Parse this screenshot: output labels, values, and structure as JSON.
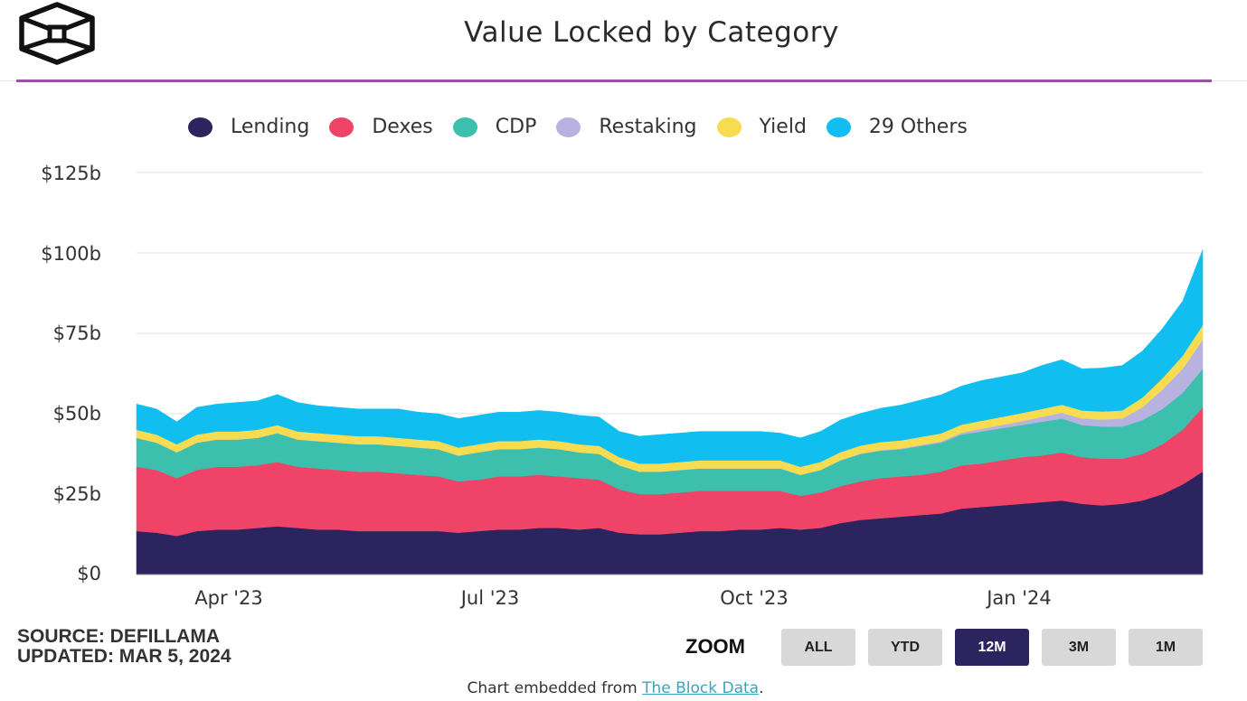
{
  "header": {
    "title": "Value Locked by Category",
    "logo": "the-block-cube-logo"
  },
  "footer": {
    "source": "SOURCE: DEFILLAMA",
    "updated": "UPDATED: MAR 5, 2024",
    "zoom_label": "ZOOM",
    "zoom_buttons": [
      {
        "label": "ALL",
        "active": false
      },
      {
        "label": "YTD",
        "active": false
      },
      {
        "label": "12M",
        "active": true
      },
      {
        "label": "3M",
        "active": false
      },
      {
        "label": "1M",
        "active": false
      }
    ],
    "embed_prefix": "Chart embedded from ",
    "embed_link": "The Block Data",
    "embed_suffix": "."
  },
  "colors": {
    "accent_rule": "#9b4fa6",
    "active_button": "#2c245e",
    "button": "#d8d8d8",
    "link": "#3aa6b9"
  },
  "chart_data": {
    "type": "area",
    "stacked": true,
    "title": "Value Locked by Category",
    "xlabel": "",
    "ylabel": "",
    "ylim": [
      0,
      125
    ],
    "y_unit": "$ billions",
    "yticks": [
      0,
      25,
      50,
      75,
      100,
      125
    ],
    "ytick_labels": [
      "$0",
      "$25b",
      "$50b",
      "$75b",
      "$100b",
      "$125b"
    ],
    "xtick_labels": [
      "Apr '23",
      "Jul '23",
      "Oct '23",
      "Jan '24"
    ],
    "xtick_positions": [
      0.099,
      0.332,
      0.58,
      0.83
    ],
    "grid": true,
    "legend_position": "top-center",
    "x": [
      "2023-03-05",
      "2023-03-12",
      "2023-03-19",
      "2023-03-26",
      "2023-04-02",
      "2023-04-09",
      "2023-04-16",
      "2023-04-23",
      "2023-04-30",
      "2023-05-07",
      "2023-05-14",
      "2023-05-21",
      "2023-05-28",
      "2023-06-04",
      "2023-06-11",
      "2023-06-18",
      "2023-06-25",
      "2023-07-02",
      "2023-07-09",
      "2023-07-16",
      "2023-07-23",
      "2023-07-30",
      "2023-08-06",
      "2023-08-13",
      "2023-08-20",
      "2023-08-27",
      "2023-09-03",
      "2023-09-10",
      "2023-09-17",
      "2023-09-24",
      "2023-10-01",
      "2023-10-08",
      "2023-10-15",
      "2023-10-22",
      "2023-10-29",
      "2023-11-05",
      "2023-11-12",
      "2023-11-19",
      "2023-11-26",
      "2023-12-03",
      "2023-12-10",
      "2023-12-17",
      "2023-12-24",
      "2023-12-31",
      "2024-01-07",
      "2024-01-14",
      "2024-01-21",
      "2024-01-28",
      "2024-02-04",
      "2024-02-11",
      "2024-02-18",
      "2024-02-25",
      "2024-03-01",
      "2024-03-05"
    ],
    "series": [
      {
        "name": "Lending",
        "color": "#2c245e",
        "values": [
          13.5,
          13.0,
          12.0,
          13.5,
          14.0,
          14.0,
          14.5,
          15.0,
          14.5,
          14.0,
          14.0,
          13.5,
          13.5,
          13.5,
          13.5,
          13.5,
          13.0,
          13.5,
          14.0,
          14.0,
          14.5,
          14.5,
          14.0,
          14.5,
          13.0,
          12.5,
          12.5,
          13.0,
          13.5,
          13.5,
          14.0,
          14.0,
          14.5,
          14.0,
          14.5,
          16.0,
          17.0,
          17.5,
          18.0,
          18.5,
          19.0,
          20.5,
          21.0,
          21.5,
          22.0,
          22.5,
          23.0,
          22.0,
          21.5,
          22.0,
          23.0,
          25.0,
          28.0,
          32.0
        ]
      },
      {
        "name": "Dexes",
        "color": "#ef4467",
        "values": [
          20.0,
          19.5,
          18.0,
          19.0,
          19.5,
          19.5,
          19.5,
          20.0,
          19.0,
          19.0,
          18.5,
          18.5,
          18.5,
          18.0,
          17.5,
          17.0,
          16.0,
          16.0,
          16.5,
          16.5,
          16.5,
          16.0,
          16.0,
          15.0,
          13.5,
          12.5,
          12.5,
          12.5,
          12.5,
          12.5,
          12.0,
          12.0,
          11.5,
          10.5,
          11.0,
          11.5,
          12.0,
          12.5,
          12.5,
          12.5,
          13.0,
          13.5,
          13.5,
          14.0,
          14.5,
          14.5,
          15.0,
          14.5,
          14.5,
          14.0,
          14.5,
          15.5,
          17.0,
          20.0
        ]
      },
      {
        "name": "CDP",
        "color": "#3dbfad",
        "values": [
          9.0,
          8.5,
          8.0,
          8.5,
          8.5,
          8.5,
          8.5,
          9.0,
          8.5,
          8.5,
          8.5,
          8.5,
          8.5,
          8.5,
          8.5,
          8.5,
          8.0,
          8.5,
          8.5,
          8.5,
          8.5,
          8.5,
          8.0,
          8.0,
          7.5,
          7.0,
          7.0,
          7.0,
          7.0,
          7.0,
          7.0,
          7.0,
          7.0,
          6.5,
          7.0,
          8.0,
          8.5,
          8.5,
          8.5,
          9.0,
          9.0,
          9.5,
          10.0,
          10.0,
          10.0,
          10.5,
          10.5,
          10.0,
          10.0,
          10.0,
          10.5,
          11.0,
          11.5,
          12.0
        ]
      },
      {
        "name": "Restaking",
        "color": "#b8b2e0",
        "values": [
          0.0,
          0.0,
          0.0,
          0.0,
          0.0,
          0.0,
          0.0,
          0.0,
          0.0,
          0.0,
          0.0,
          0.0,
          0.0,
          0.0,
          0.0,
          0.0,
          0.0,
          0.0,
          0.0,
          0.0,
          0.0,
          0.0,
          0.0,
          0.0,
          0.0,
          0.0,
          0.0,
          0.0,
          0.0,
          0.0,
          0.0,
          0.0,
          0.0,
          0.0,
          0.0,
          0.1,
          0.1,
          0.2,
          0.2,
          0.3,
          0.4,
          0.6,
          0.8,
          1.0,
          1.2,
          1.5,
          1.8,
          2.0,
          2.2,
          2.5,
          4.0,
          6.0,
          7.5,
          9.0
        ]
      },
      {
        "name": "Yield",
        "color": "#f7dc52",
        "values": [
          2.5,
          2.5,
          2.5,
          2.5,
          2.5,
          2.5,
          2.5,
          2.5,
          2.5,
          2.5,
          2.5,
          2.5,
          2.5,
          2.5,
          2.5,
          2.5,
          2.5,
          2.5,
          2.5,
          2.5,
          2.5,
          2.5,
          2.5,
          2.5,
          2.5,
          2.5,
          2.5,
          2.5,
          2.5,
          2.5,
          2.5,
          2.5,
          2.5,
          2.5,
          2.5,
          2.5,
          2.5,
          2.5,
          2.5,
          2.5,
          2.5,
          2.5,
          2.5,
          2.5,
          2.5,
          2.5,
          2.5,
          2.5,
          2.5,
          2.5,
          3.0,
          3.5,
          4.0,
          4.5
        ]
      },
      {
        "name": "29 Others",
        "color": "#10bfef",
        "values": [
          8.0,
          8.0,
          7.0,
          8.5,
          8.5,
          9.0,
          9.0,
          9.5,
          9.0,
          8.5,
          8.5,
          8.5,
          8.5,
          9.0,
          8.5,
          8.5,
          9.0,
          9.0,
          9.0,
          9.0,
          9.0,
          9.0,
          9.0,
          9.0,
          8.0,
          8.5,
          9.0,
          9.0,
          9.0,
          9.0,
          9.0,
          9.0,
          8.5,
          9.0,
          9.5,
          10.0,
          10.0,
          10.5,
          11.0,
          11.5,
          12.0,
          12.0,
          12.5,
          12.5,
          12.5,
          13.5,
          14.0,
          13.0,
          13.5,
          14.0,
          14.5,
          15.5,
          17.0,
          23.5
        ]
      }
    ]
  }
}
